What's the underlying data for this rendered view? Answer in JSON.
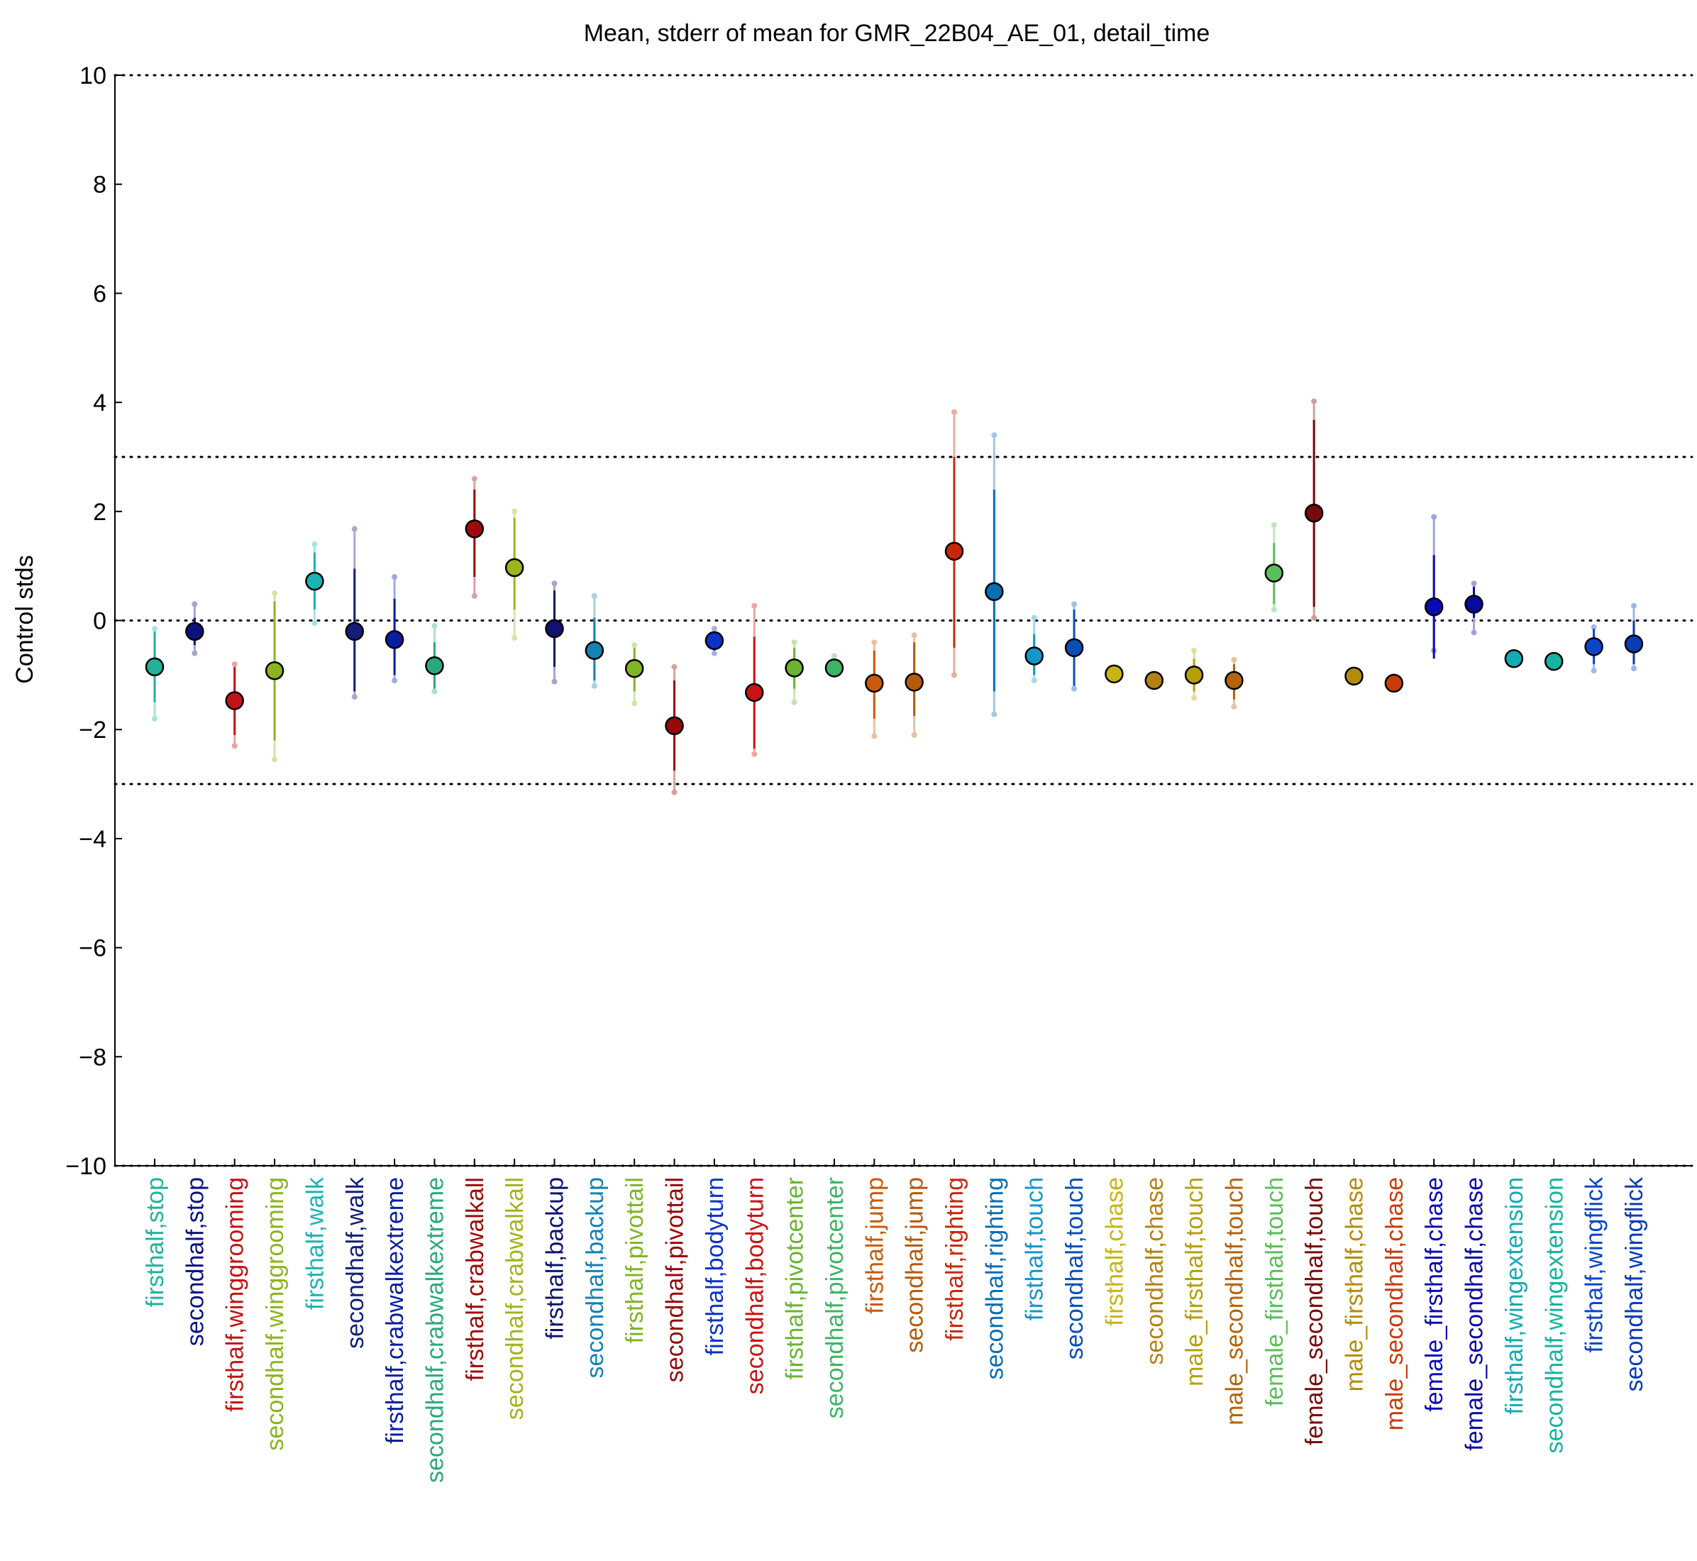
{
  "chart_data": {
    "type": "scatter",
    "title": "Mean, stderr of mean for GMR_22B04_AE_01, detail_time",
    "xlabel": "",
    "ylabel": "Control stds",
    "ylim": [
      -10,
      10
    ],
    "yticks": [
      -10,
      -8,
      -6,
      -4,
      -2,
      0,
      2,
      4,
      6,
      8,
      10
    ],
    "ytick_labels": [
      "−10",
      "−8",
      "−6",
      "−4",
      "−2",
      "0",
      "2",
      "4",
      "6",
      "8",
      "10"
    ],
    "reference_lines": [
      -10,
      -3,
      0,
      3,
      10
    ],
    "grid": "dotted reference lines",
    "categories": [
      {
        "label": "firsthalf,stop",
        "color": "#22b29a",
        "mean": -0.85,
        "sem_low": -1.5,
        "sem_high": -0.2,
        "range": [
          -1.8,
          -0.15
        ]
      },
      {
        "label": "secondhalf,stop",
        "color": "#0b1280",
        "mean": -0.2,
        "sem_low": -0.45,
        "sem_high": 0.05,
        "range": [
          -0.6,
          0.3
        ]
      },
      {
        "label": "firsthalf,winggrooming",
        "color": "#c01414",
        "mean": -1.47,
        "sem_low": -2.1,
        "sem_high": -0.85,
        "range": [
          -2.3,
          -0.8
        ]
      },
      {
        "label": "secondhalf,winggrooming",
        "color": "#8cb41e",
        "mean": -0.92,
        "sem_low": -2.2,
        "sem_high": 0.35,
        "range": [
          -2.55,
          0.5
        ]
      },
      {
        "label": "firsthalf,walk",
        "color": "#1ab4b4",
        "mean": 0.72,
        "sem_low": 0.2,
        "sem_high": 1.25,
        "range": [
          -0.05,
          1.4
        ]
      },
      {
        "label": "secondhalf,walk",
        "color": "#141e78",
        "mean": -0.2,
        "sem_low": -1.3,
        "sem_high": 0.95,
        "range": [
          -1.4,
          1.68
        ]
      },
      {
        "label": "firsthalf,crabwalkextreme",
        "color": "#0a1ea0",
        "mean": -0.35,
        "sem_low": -1.0,
        "sem_high": 0.4,
        "range": [
          -1.1,
          0.8
        ]
      },
      {
        "label": "secondhalf,crabwalkextreme",
        "color": "#2aaa7a",
        "mean": -0.83,
        "sem_low": -1.25,
        "sem_high": -0.4,
        "range": [
          -1.3,
          -0.1
        ]
      },
      {
        "label": "firsthalf,crabwalkall",
        "color": "#a00a0a",
        "mean": 1.68,
        "sem_low": 0.8,
        "sem_high": 2.4,
        "range": [
          0.45,
          2.6
        ]
      },
      {
        "label": "secondhalf,crabwalkall",
        "color": "#a0b41e",
        "mean": 0.97,
        "sem_low": 0.2,
        "sem_high": 1.88,
        "range": [
          -0.32,
          2.0
        ]
      },
      {
        "label": "firsthalf,backup",
        "color": "#0f1270",
        "mean": -0.15,
        "sem_low": -0.85,
        "sem_high": 0.55,
        "range": [
          -1.12,
          0.68
        ]
      },
      {
        "label": "secondhalf,backup",
        "color": "#1482b4",
        "mean": -0.55,
        "sem_low": -1.1,
        "sem_high": 0.05,
        "range": [
          -1.2,
          0.45
        ]
      },
      {
        "label": "firsthalf,pivottail",
        "color": "#82b428",
        "mean": -0.88,
        "sem_low": -1.3,
        "sem_high": -0.5,
        "range": [
          -1.52,
          -0.45
        ]
      },
      {
        "label": "secondhalf,pivottail",
        "color": "#960a0a",
        "mean": -1.93,
        "sem_low": -2.75,
        "sem_high": -1.1,
        "range": [
          -3.15,
          -0.85
        ]
      },
      {
        "label": "firsthalf,bodyturn",
        "color": "#0a32c8",
        "mean": -0.37,
        "sem_low": -0.55,
        "sem_high": -0.2,
        "range": [
          -0.6,
          -0.15
        ]
      },
      {
        "label": "secondhalf,bodyturn",
        "color": "#c81414",
        "mean": -1.32,
        "sem_low": -2.35,
        "sem_high": -0.3,
        "range": [
          -2.45,
          0.27
        ]
      },
      {
        "label": "firsthalf,pivotcenter",
        "color": "#6ab432",
        "mean": -0.87,
        "sem_low": -1.25,
        "sem_high": -0.5,
        "range": [
          -1.5,
          -0.4
        ]
      },
      {
        "label": "secondhalf,pivotcenter",
        "color": "#3cb464",
        "mean": -0.87,
        "sem_low": -0.95,
        "sem_high": -0.72,
        "range": [
          -1.0,
          -0.65
        ]
      },
      {
        "label": "firsthalf,jump",
        "color": "#c85a0a",
        "mean": -1.15,
        "sem_low": -1.8,
        "sem_high": -0.55,
        "range": [
          -2.12,
          -0.4
        ]
      },
      {
        "label": "secondhalf,jump",
        "color": "#b45a0a",
        "mean": -1.13,
        "sem_low": -1.75,
        "sem_high": -0.4,
        "range": [
          -2.1,
          -0.27
        ]
      },
      {
        "label": "firsthalf,righting",
        "color": "#c8280a",
        "mean": 1.27,
        "sem_low": -0.5,
        "sem_high": 3.0,
        "range": [
          -1.0,
          3.82
        ]
      },
      {
        "label": "secondhalf,righting",
        "color": "#0a6eb4",
        "mean": 0.53,
        "sem_low": -1.3,
        "sem_high": 2.4,
        "range": [
          -1.72,
          3.4
        ]
      },
      {
        "label": "firsthalf,touch",
        "color": "#1496c8",
        "mean": -0.65,
        "sem_low": -1.0,
        "sem_high": -0.25,
        "range": [
          -1.1,
          0.05
        ]
      },
      {
        "label": "secondhalf,touch",
        "color": "#0a50b4",
        "mean": -0.5,
        "sem_low": -1.2,
        "sem_high": 0.2,
        "range": [
          -1.25,
          0.3
        ]
      },
      {
        "label": "firsthalf,chase",
        "color": "#c8b414",
        "mean": -0.98,
        "sem_low": -1.02,
        "sem_high": -0.94,
        "range": [
          -1.02,
          -0.94
        ]
      },
      {
        "label": "secondhalf,chase",
        "color": "#b48214",
        "mean": -1.1,
        "sem_low": -1.15,
        "sem_high": -1.05,
        "range": [
          -1.15,
          -1.05
        ]
      },
      {
        "label": "male_firsthalf,touch",
        "color": "#b4a00a",
        "mean": -1.0,
        "sem_low": -1.3,
        "sem_high": -0.7,
        "range": [
          -1.42,
          -0.55
        ]
      },
      {
        "label": "male_secondhalf,touch",
        "color": "#b4640a",
        "mean": -1.1,
        "sem_low": -1.45,
        "sem_high": -0.8,
        "range": [
          -1.58,
          -0.72
        ]
      },
      {
        "label": "female_firsthalf,touch",
        "color": "#5abe5a",
        "mean": 0.87,
        "sem_low": 0.3,
        "sem_high": 1.42,
        "range": [
          0.2,
          1.75
        ]
      },
      {
        "label": "female_secondhalf,touch",
        "color": "#780a0a",
        "mean": 1.97,
        "sem_low": 0.25,
        "sem_high": 3.68,
        "range": [
          0.05,
          4.02
        ]
      },
      {
        "label": "male_firsthalf,chase",
        "color": "#b48c0a",
        "mean": -1.02,
        "sem_low": -1.06,
        "sem_high": -0.98,
        "range": [
          -1.06,
          -0.98
        ]
      },
      {
        "label": "male_secondhalf,chase",
        "color": "#c83c0a",
        "mean": -1.15,
        "sem_low": -1.19,
        "sem_high": -1.11,
        "range": [
          -1.19,
          -1.11
        ]
      },
      {
        "label": "female_firsthalf,chase",
        "color": "#0a0ab4",
        "mean": 0.25,
        "sem_low": -0.7,
        "sem_high": 1.2,
        "range": [
          -0.55,
          1.9
        ]
      },
      {
        "label": "female_secondhalf,chase",
        "color": "#0a0aa0",
        "mean": 0.3,
        "sem_low": 0.05,
        "sem_high": 0.62,
        "range": [
          -0.22,
          0.68
        ]
      },
      {
        "label": "firsthalf,wingextension",
        "color": "#14aab4",
        "mean": -0.7,
        "sem_low": -0.74,
        "sem_high": -0.66,
        "range": [
          -0.74,
          -0.66
        ]
      },
      {
        "label": "secondhalf,wingextension",
        "color": "#14b4a0",
        "mean": -0.75,
        "sem_low": -0.79,
        "sem_high": -0.71,
        "range": [
          -0.79,
          -0.71
        ]
      },
      {
        "label": "firsthalf,wingflick",
        "color": "#0a46c8",
        "mean": -0.48,
        "sem_low": -0.8,
        "sem_high": -0.15,
        "range": [
          -0.92,
          -0.12
        ]
      },
      {
        "label": "secondhalf,wingflick",
        "color": "#0a3cb4",
        "mean": -0.43,
        "sem_low": -0.8,
        "sem_high": 0.0,
        "range": [
          -0.88,
          0.27
        ]
      }
    ]
  }
}
